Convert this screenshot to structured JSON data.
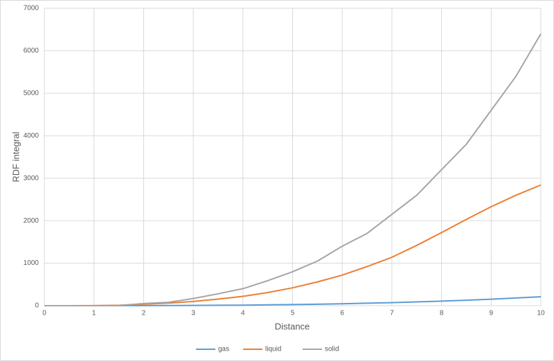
{
  "chart_data": {
    "type": "line",
    "x_label": "Distance",
    "y_label": "RDF integral",
    "x": [
      0,
      0.5,
      1,
      1.5,
      2,
      2.5,
      3,
      3.5,
      4,
      4.5,
      5,
      5.5,
      6,
      6.5,
      7,
      7.5,
      8,
      8.5,
      9,
      9.5,
      10
    ],
    "series": [
      {
        "name": "gas",
        "color": "#5b9bd5",
        "values": [
          0,
          0,
          0,
          1,
          2,
          3,
          6,
          9,
          13,
          19,
          26,
          35,
          45,
          58,
          72,
          89,
          108,
          129,
          153,
          180,
          210
        ]
      },
      {
        "name": "liquid",
        "color": "#ed7d31",
        "values": [
          0,
          0,
          2,
          10,
          35,
          60,
          100,
          155,
          220,
          310,
          420,
          560,
          720,
          920,
          1140,
          1420,
          1720,
          2030,
          2330,
          2600,
          2840
        ]
      },
      {
        "name": "solid",
        "color": "#a5a5a5",
        "values": [
          0,
          0,
          0,
          5,
          50,
          80,
          170,
          280,
          400,
          590,
          800,
          1050,
          1400,
          1700,
          2150,
          2600,
          3200,
          3800,
          4600,
          5400,
          6400
        ]
      }
    ],
    "xlim": [
      0,
      10
    ],
    "xticks": [
      0,
      1,
      2,
      3,
      4,
      5,
      6,
      7,
      8,
      9,
      10
    ],
    "ylim": [
      0,
      7000
    ],
    "yticks": [
      0,
      1000,
      2000,
      3000,
      4000,
      5000,
      6000,
      7000
    ],
    "grid": true,
    "legend": "bottom"
  }
}
